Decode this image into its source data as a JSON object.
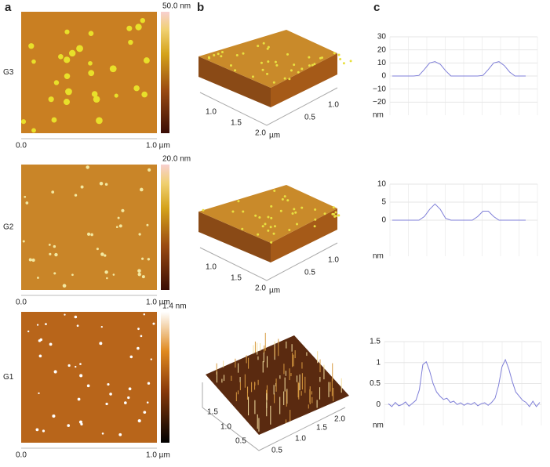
{
  "panel_labels": [
    "a",
    "b",
    "c"
  ],
  "panel_a": [
    {
      "row": "G3",
      "scale_max": "50.0 nm",
      "x_start": "0.0",
      "x_end": "1.0 µm"
    },
    {
      "row": "G2",
      "scale_max": "20.0 nm",
      "x_start": "0.0",
      "x_end": "1.0 µm"
    },
    {
      "row": "G1",
      "scale_max": "1.4 nm",
      "x_start": "0.0",
      "x_end": "1.0 µm"
    }
  ],
  "panel_b": [
    {
      "labels": [
        "1.0",
        "1.5",
        "2.0",
        "µm",
        "0.5",
        "1.0"
      ]
    },
    {
      "labels": [
        "1.0",
        "1.5",
        "2.0",
        "µm",
        "0.5",
        "1.0"
      ]
    },
    {
      "labels": [
        "1.5",
        "1.0",
        "0.5",
        "0.5",
        "1.0",
        "1.5",
        "2.0"
      ]
    }
  ],
  "chart_data": [
    {
      "type": "line",
      "ylabel": "nm",
      "ylim": [
        -30,
        30
      ],
      "yticks": [
        30,
        20,
        10,
        0,
        {
          "value": -10,
          "label": "−10"
        },
        {
          "value": -20,
          "label": "−20"
        }
      ],
      "grid": true,
      "categories": [
        null,
        null,
        null,
        null,
        null,
        null,
        null,
        null,
        null,
        null,
        null,
        null,
        null,
        null,
        null,
        null,
        null,
        null,
        null,
        null,
        null,
        null,
        null,
        null,
        null,
        null
      ],
      "series": [
        {
          "color": "#7f7fd8",
          "values": [
            0,
            0,
            0,
            0,
            0,
            0.5,
            5,
            10,
            11,
            9,
            4,
            0,
            0,
            0,
            0,
            0,
            0,
            0.5,
            5,
            10,
            11,
            8,
            3,
            0,
            0,
            0
          ]
        }
      ]
    },
    {
      "type": "line",
      "ylabel": "nm",
      "ylim": [
        -10,
        10
      ],
      "yticks": [
        10,
        5,
        0
      ],
      "grid": true,
      "categories": [
        null,
        null,
        null,
        null,
        null,
        null,
        null,
        null,
        null,
        null,
        null,
        null,
        null,
        null,
        null,
        null,
        null,
        null,
        null,
        null,
        null,
        null,
        null,
        null,
        null,
        null
      ],
      "series": [
        {
          "color": "#7f7fd8",
          "values": [
            0,
            0,
            0,
            0,
            0,
            0,
            1,
            3,
            4.5,
            3,
            0.5,
            0,
            0,
            0,
            0,
            0,
            1,
            2.5,
            2.5,
            1,
            0,
            0,
            0,
            0,
            0,
            0
          ]
        }
      ]
    },
    {
      "type": "line",
      "ylabel": "nm",
      "ylim": [
        -0.5,
        1.5
      ],
      "yticks": [
        1.5,
        1,
        0.5,
        0
      ],
      "grid": true,
      "categories": [
        null,
        null,
        null,
        null,
        null,
        null,
        null,
        null,
        null,
        null,
        null,
        null,
        null,
        null,
        null,
        null,
        null,
        null,
        null,
        null,
        null,
        null,
        null,
        null,
        null,
        null,
        null,
        null,
        null,
        null,
        null,
        null,
        null,
        null,
        null,
        null,
        null,
        null,
        null,
        null,
        null,
        null,
        null,
        null,
        null
      ],
      "series": [
        {
          "color": "#7f7fd8",
          "values": [
            0.02,
            -0.05,
            0.05,
            -0.03,
            0,
            0.06,
            -0.04,
            0.03,
            0.1,
            0.35,
            0.95,
            1.02,
            0.8,
            0.5,
            0.3,
            0.2,
            0.12,
            0.15,
            0.05,
            0.08,
            0,
            0.04,
            -0.02,
            0.03,
            0,
            0.05,
            -0.03,
            0.02,
            0.04,
            -0.02,
            0.05,
            0.15,
            0.45,
            0.9,
            1.07,
            0.85,
            0.55,
            0.3,
            0.2,
            0.1,
            0.05,
            -0.05,
            0.08,
            -0.05,
            0.05
          ]
        }
      ]
    }
  ]
}
